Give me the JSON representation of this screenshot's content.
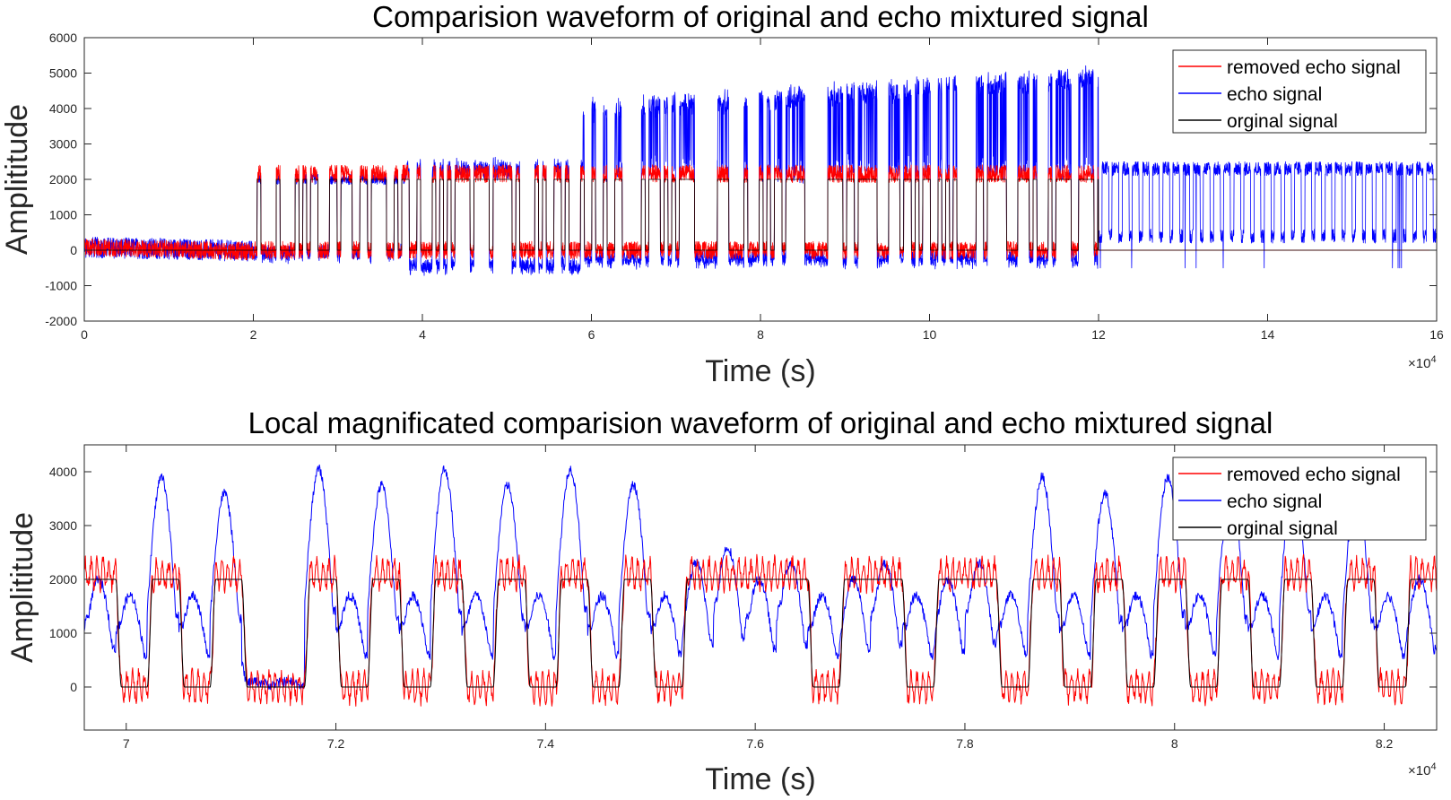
{
  "chart_data": [
    {
      "type": "line",
      "title": "Comparision waveform of original and echo mixtured signal",
      "xlabel": "Time (s)",
      "ylabel": "Amplititude",
      "x_exponent_label": "×10",
      "x_exponent_power": "4",
      "xlim": [
        0,
        16
      ],
      "ylim": [
        -2000,
        6000
      ],
      "xticks": [
        0,
        2,
        4,
        6,
        8,
        10,
        12,
        14,
        16
      ],
      "yticks": [
        -2000,
        -1000,
        0,
        1000,
        2000,
        3000,
        4000,
        5000,
        6000
      ],
      "grid": false,
      "legend_position": "top-right",
      "series": [
        {
          "name": "removed echo signal",
          "color": "#ff0000",
          "segments": [
            {
              "x": [
                0,
                2
              ],
              "level": 0,
              "noise": 250,
              "desc": "noise around 0"
            },
            {
              "x": [
                2,
                12
              ],
              "low": 0,
              "high": 2200,
              "noise": 250,
              "desc": "square pulses following original"
            },
            {
              "x": [
                12,
                16
              ],
              "level": 0,
              "noise": 0,
              "desc": "flat at 0"
            }
          ]
        },
        {
          "name": "echo signal",
          "color": "#0000ff",
          "segments": [
            {
              "x": [
                0,
                2
              ],
              "level": 0,
              "noise": 300
            },
            {
              "x": [
                2,
                3.8
              ],
              "low": -300,
              "high": 2100
            },
            {
              "x": [
                3.8,
                5.9
              ],
              "low": -800,
              "high": 2400
            },
            {
              "x": [
                5.9,
                12
              ],
              "low": -600,
              "high": 4000,
              "high_end": 4900,
              "peak": 5300
            },
            {
              "x": [
                12,
                16
              ],
              "low": 200,
              "high": 2400
            }
          ]
        },
        {
          "name": "orginal signal",
          "color": "#000000",
          "segments": [
            {
              "x": [
                0,
                2
              ],
              "level": 0
            },
            {
              "x": [
                2,
                12
              ],
              "low": 0,
              "high": 2000,
              "desc": "binary square wave 0/2000"
            },
            {
              "x": [
                12,
                16
              ],
              "level": 0
            }
          ]
        }
      ]
    },
    {
      "type": "line",
      "title": "Local magnificated comparision waveform of original and echo mixtured signal",
      "xlabel": "Time (s)",
      "ylabel": "Amplititude",
      "x_exponent_label": "×10",
      "x_exponent_power": "4",
      "xlim": [
        6.96,
        8.25
      ],
      "ylim": [
        -800,
        4500
      ],
      "xticks": [
        7,
        7.2,
        7.4,
        7.6,
        7.8,
        8,
        8.2
      ],
      "yticks": [
        0,
        1000,
        2000,
        3000,
        4000
      ],
      "grid": false,
      "legend_position": "top-right",
      "original_bits": [
        1,
        0,
        1,
        0,
        1,
        0,
        0,
        1,
        0,
        1,
        0,
        1,
        0,
        1,
        0,
        1,
        0,
        1,
        0,
        1,
        1,
        1,
        1,
        0,
        1,
        1,
        0,
        1,
        1,
        0,
        1,
        0,
        1,
        0,
        1,
        0,
        1,
        0,
        1,
        0,
        1,
        0,
        1
      ],
      "series": [
        {
          "name": "removed echo signal",
          "color": "#ff0000",
          "low": 0,
          "high": 2300,
          "noise": 400
        },
        {
          "name": "echo signal",
          "color": "#0000ff",
          "low": 0,
          "high": 2000,
          "peak_max": 4100
        },
        {
          "name": "orginal signal",
          "color": "#000000",
          "low": 0,
          "high": 2000
        }
      ]
    }
  ]
}
